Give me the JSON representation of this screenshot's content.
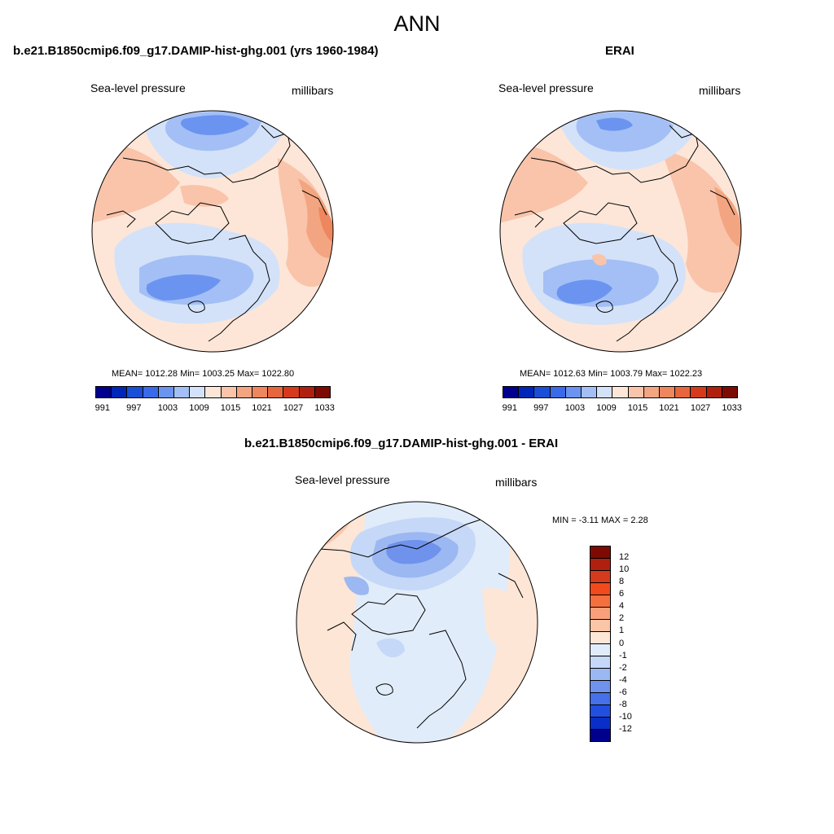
{
  "figure_title": "ANN",
  "panels": [
    {
      "title": "b.e21.B1850cmip6.f09_g17.DAMIP-hist-ghg.001 (yrs 1960-1984)",
      "variable": "Sea-level pressure",
      "units": "millibars",
      "stats": "MEAN= 1012.28  Min= 1003.25  Max= 1022.80"
    },
    {
      "title": "ERAI",
      "variable": "Sea-level pressure",
      "units": "millibars",
      "stats": "MEAN= 1012.63  Min= 1003.79  Max= 1022.23"
    },
    {
      "title": "b.e21.B1850cmip6.f09_g17.DAMIP-hist-ghg.001 - ERAI",
      "variable": "Sea-level pressure",
      "units": "millibars",
      "stats": "MIN =  -3.11 MAX =   2.28"
    }
  ],
  "abs_colorbar": {
    "colors": [
      "#00008c",
      "#0026b8",
      "#1a4ed6",
      "#3a6ae8",
      "#6b94f0",
      "#a3bff5",
      "#d3e2f8",
      "#fde6d8",
      "#f9c4aa",
      "#f3a581",
      "#ee865e",
      "#e8663d",
      "#d63a1d",
      "#b0200e",
      "#7e0a04"
    ],
    "tick_labels": [
      "991",
      "997",
      "1003",
      "1009",
      "1015",
      "1021",
      "1027",
      "1033"
    ]
  },
  "diff_colorbar": {
    "colors": [
      "#7e0a04",
      "#b0200e",
      "#d63a1d",
      "#f24a1d",
      "#f6703f",
      "#f9a07a",
      "#fbc6a8",
      "#fde6d6",
      "#e1ecfa",
      "#c6d8f7",
      "#9cb8f2",
      "#6f92ec",
      "#4570ea",
      "#234fe0",
      "#0a2fc8",
      "#00008c"
    ],
    "tick_labels": [
      "12",
      "10",
      "8",
      "6",
      "4",
      "2",
      "1",
      "0",
      "-1",
      "-2",
      "-4",
      "-6",
      "-8",
      "-10",
      "-12"
    ]
  }
}
